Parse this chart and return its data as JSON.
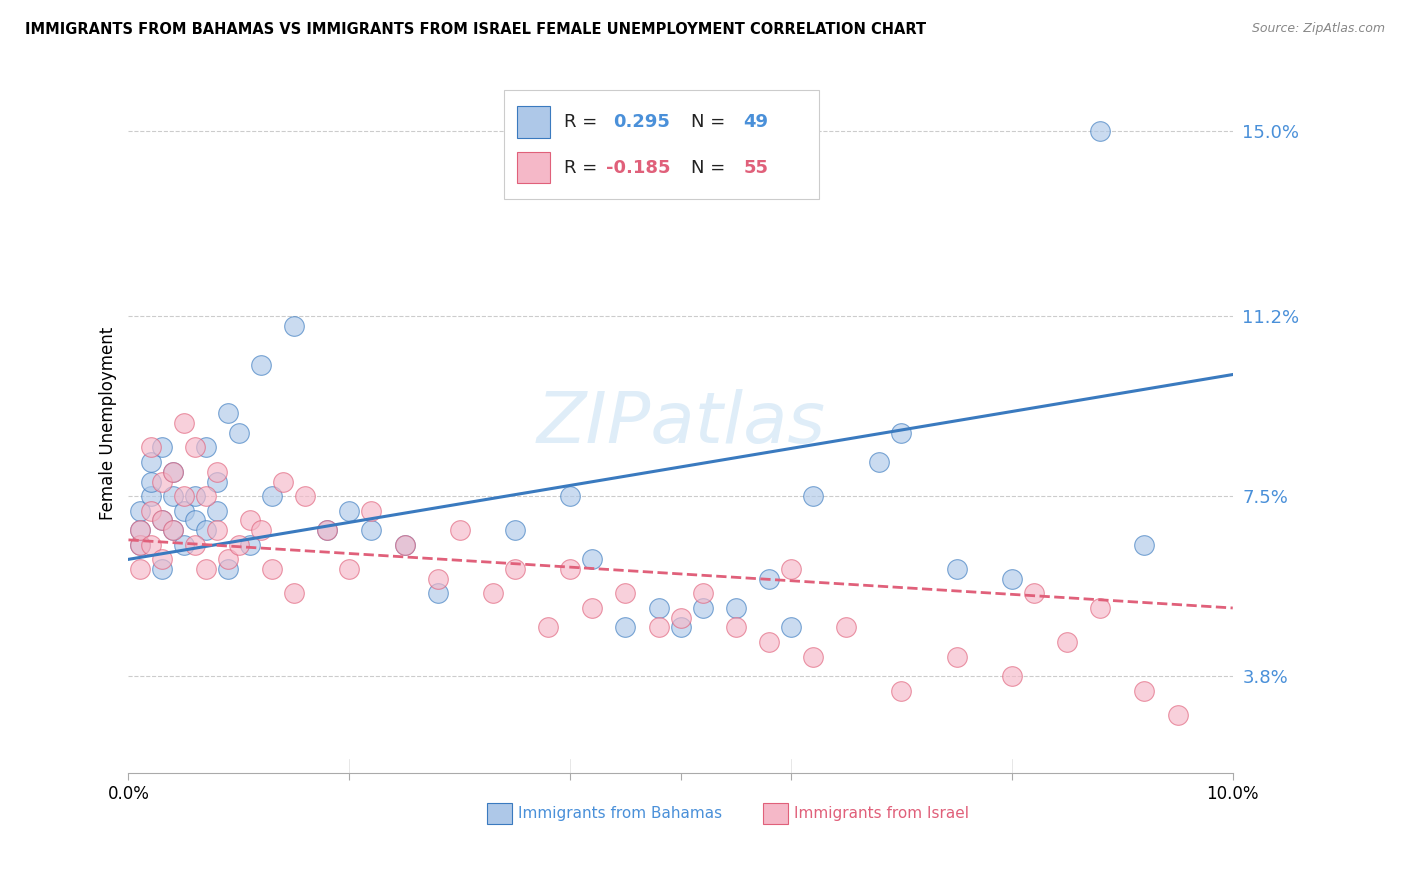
{
  "title": "IMMIGRANTS FROM BAHAMAS VS IMMIGRANTS FROM ISRAEL FEMALE UNEMPLOYMENT CORRELATION CHART",
  "source": "Source: ZipAtlas.com",
  "ylabel": "Female Unemployment",
  "y_ticks": [
    0.038,
    0.075,
    0.112,
    0.15
  ],
  "y_tick_labels": [
    "3.8%",
    "7.5%",
    "11.2%",
    "15.0%"
  ],
  "x_range": [
    0.0,
    0.1
  ],
  "y_range": [
    0.018,
    0.162
  ],
  "watermark": "ZIPatlas",
  "color_blue": "#aec8e8",
  "color_pink": "#f5b8c8",
  "line_blue": "#3a7abf",
  "line_pink": "#e0607a",
  "bahamas_x": [
    0.001,
    0.001,
    0.001,
    0.002,
    0.002,
    0.002,
    0.003,
    0.003,
    0.003,
    0.004,
    0.004,
    0.004,
    0.005,
    0.005,
    0.006,
    0.006,
    0.007,
    0.007,
    0.008,
    0.008,
    0.009,
    0.009,
    0.01,
    0.011,
    0.012,
    0.013,
    0.015,
    0.018,
    0.02,
    0.022,
    0.025,
    0.028,
    0.035,
    0.04,
    0.042,
    0.045,
    0.048,
    0.05,
    0.052,
    0.055,
    0.058,
    0.06,
    0.062,
    0.068,
    0.07,
    0.075,
    0.08,
    0.088,
    0.092
  ],
  "bahamas_y": [
    0.065,
    0.068,
    0.072,
    0.075,
    0.078,
    0.082,
    0.06,
    0.07,
    0.085,
    0.075,
    0.068,
    0.08,
    0.065,
    0.072,
    0.07,
    0.075,
    0.068,
    0.085,
    0.072,
    0.078,
    0.06,
    0.092,
    0.088,
    0.065,
    0.102,
    0.075,
    0.11,
    0.068,
    0.072,
    0.068,
    0.065,
    0.055,
    0.068,
    0.075,
    0.062,
    0.048,
    0.052,
    0.048,
    0.052,
    0.052,
    0.058,
    0.048,
    0.075,
    0.082,
    0.088,
    0.06,
    0.058,
    0.15,
    0.065
  ],
  "israel_x": [
    0.001,
    0.001,
    0.001,
    0.002,
    0.002,
    0.002,
    0.003,
    0.003,
    0.003,
    0.004,
    0.004,
    0.005,
    0.005,
    0.006,
    0.006,
    0.007,
    0.007,
    0.008,
    0.008,
    0.009,
    0.01,
    0.011,
    0.012,
    0.013,
    0.014,
    0.015,
    0.016,
    0.018,
    0.02,
    0.022,
    0.025,
    0.028,
    0.03,
    0.033,
    0.035,
    0.038,
    0.04,
    0.042,
    0.045,
    0.048,
    0.05,
    0.052,
    0.055,
    0.058,
    0.06,
    0.062,
    0.065,
    0.07,
    0.075,
    0.08,
    0.082,
    0.085,
    0.088,
    0.092,
    0.095
  ],
  "israel_y": [
    0.065,
    0.06,
    0.068,
    0.072,
    0.065,
    0.085,
    0.07,
    0.062,
    0.078,
    0.08,
    0.068,
    0.075,
    0.09,
    0.065,
    0.085,
    0.06,
    0.075,
    0.068,
    0.08,
    0.062,
    0.065,
    0.07,
    0.068,
    0.06,
    0.078,
    0.055,
    0.075,
    0.068,
    0.06,
    0.072,
    0.065,
    0.058,
    0.068,
    0.055,
    0.06,
    0.048,
    0.06,
    0.052,
    0.055,
    0.048,
    0.05,
    0.055,
    0.048,
    0.045,
    0.06,
    0.042,
    0.048,
    0.035,
    0.042,
    0.038,
    0.055,
    0.045,
    0.052,
    0.035,
    0.03
  ]
}
